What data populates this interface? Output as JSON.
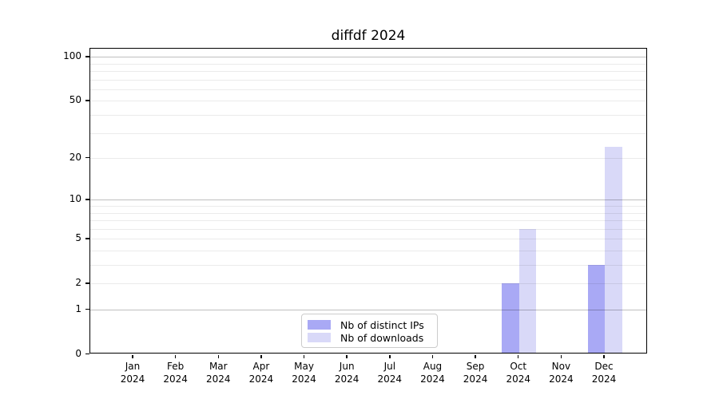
{
  "title": "diffdf 2024",
  "colors": {
    "distinct_ips": "#a9a9f5",
    "downloads": "#d9d9f8",
    "axis": "#000000",
    "grid_minor": "#ebebeb",
    "grid_major": "#bfbfbf"
  },
  "legend": {
    "items": [
      {
        "label": "Nb of distinct IPs",
        "color": "#a9a9f5"
      },
      {
        "label": "Nb of downloads",
        "color": "#d9d9f8"
      }
    ]
  },
  "chart_data": {
    "type": "bar",
    "title": "diffdf 2024",
    "categories": [
      "Jan 2024",
      "Feb 2024",
      "Mar 2024",
      "Apr 2024",
      "May 2024",
      "Jun 2024",
      "Jul 2024",
      "Aug 2024",
      "Sep 2024",
      "Oct 2024",
      "Nov 2024",
      "Dec 2024"
    ],
    "series": [
      {
        "name": "Nb of distinct IPs",
        "color": "#a9a9f5",
        "values": [
          0,
          0,
          0,
          0,
          0,
          0,
          0,
          0,
          0,
          2,
          0,
          3
        ]
      },
      {
        "name": "Nb of downloads",
        "color": "#d9d9f8",
        "values": [
          0,
          0,
          0,
          0,
          0,
          0,
          0,
          0,
          0,
          6,
          0,
          24
        ]
      }
    ],
    "xlabel": "",
    "ylabel": "",
    "y_scale": "log1p",
    "ylim": [
      0,
      113
    ],
    "y_ticks": [
      0,
      1,
      2,
      5,
      10,
      20,
      50,
      100
    ],
    "y_grid_major": [
      1,
      10,
      100
    ],
    "y_grid_minor": [
      2,
      3,
      4,
      5,
      6,
      7,
      8,
      9,
      20,
      30,
      40,
      50,
      60,
      70,
      80,
      90
    ],
    "grid": true,
    "legend_position": "bottom-center"
  }
}
